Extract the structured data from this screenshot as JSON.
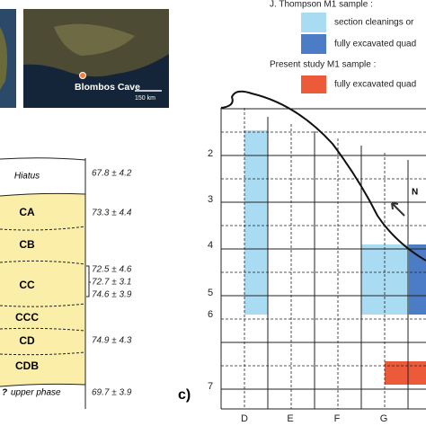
{
  "map": {
    "site_label": "Blombos Cave",
    "scale_label": "150 km"
  },
  "legend": {
    "thompson_title": "J. Thompson M1 sample :",
    "thompson_items": [
      "section cleanings or",
      "fully excavated quad"
    ],
    "present_title": "Present study M1 sample :",
    "present_items": [
      "fully excavated quad"
    ]
  },
  "stratigraphy": {
    "layers": [
      "Hiatus",
      "CA",
      "CB",
      "CC",
      "CCC",
      "CD",
      "CDB",
      "upper phase"
    ],
    "dates": [
      "67.8 ± 4.2",
      "73.3 ± 4.4",
      "72.5 ± 4.6",
      "72.7 ± 3.1",
      "74.6 ± 3.9",
      "74.9 ± 4.3",
      "69.7 ± 3.9"
    ],
    "marker": "?"
  },
  "grid": {
    "panel_label": "c)",
    "north": "N",
    "rows": [
      "2",
      "3",
      "4",
      "5",
      "6",
      "7"
    ],
    "columns": [
      "D",
      "E",
      "F",
      "G"
    ]
  }
}
